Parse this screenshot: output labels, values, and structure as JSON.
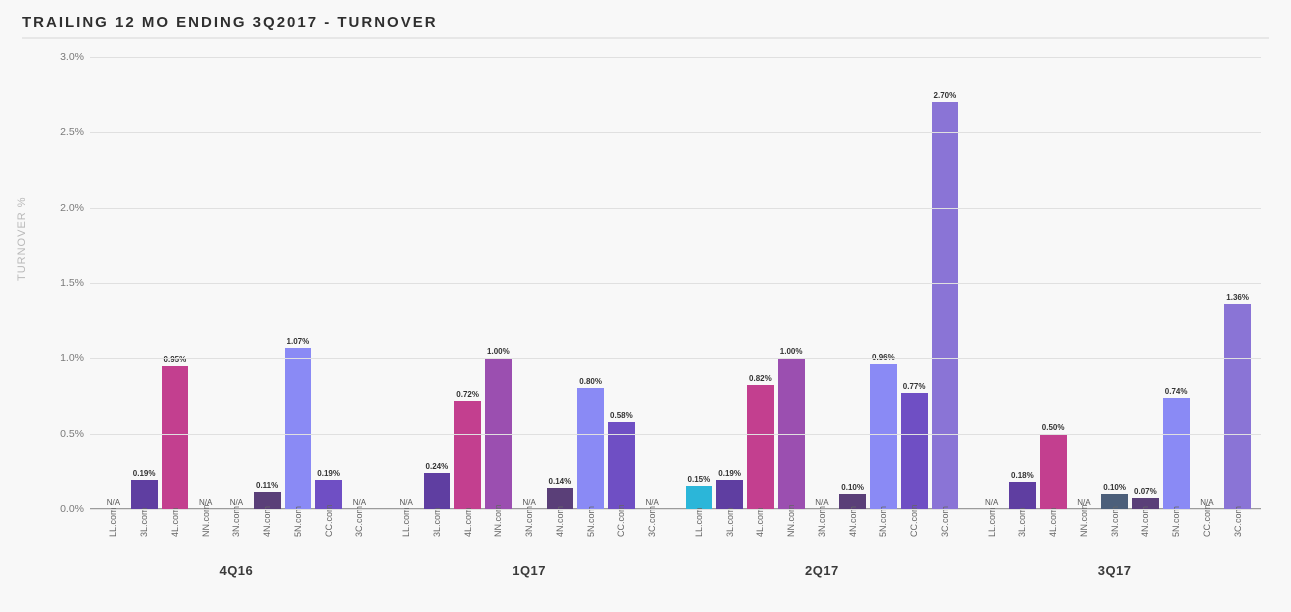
{
  "title": "TRAILING 12 MO ENDING 3Q2017 - TURNOVER",
  "ylabel": "TURNOVER %",
  "chart": {
    "type": "grouped-bar",
    "ymin": 0.0,
    "ymax": 3.0,
    "ytick_step": 0.5,
    "ytick_format": "percent_one_decimal",
    "grid_color": "#e0e0e0",
    "baseline_color": "#9c9c9c",
    "background_color": "#f8f8f8",
    "value_label_fontsize": 8,
    "axis_label_fontsize": 10.5,
    "categories": [
      "LL.com",
      "3L.com",
      "4L.com",
      "NN.com",
      "3N.com",
      "4N.com",
      "5N.com",
      "CC.com",
      "3C.com"
    ],
    "series_colors": [
      "#2bb6d9",
      "#5f3ea1",
      "#c33f8f",
      "#9b4fb0",
      "#4c5f7a",
      "#5a3f78",
      "#8a8af5",
      "#6f4fc4",
      "#8a74d6"
    ],
    "groups": [
      {
        "label": "4Q16",
        "values": [
          null,
          0.19,
          0.95,
          null,
          null,
          0.11,
          1.07,
          0.19,
          null
        ]
      },
      {
        "label": "1Q17",
        "values": [
          null,
          0.24,
          0.72,
          1.0,
          null,
          0.14,
          0.8,
          0.58,
          null
        ]
      },
      {
        "label": "2Q17",
        "values": [
          0.15,
          0.19,
          0.82,
          1.0,
          null,
          0.1,
          0.96,
          0.77,
          2.7
        ]
      },
      {
        "label": "3Q17",
        "values": [
          null,
          0.18,
          0.5,
          null,
          0.1,
          0.07,
          0.74,
          null,
          1.36
        ]
      }
    ]
  }
}
